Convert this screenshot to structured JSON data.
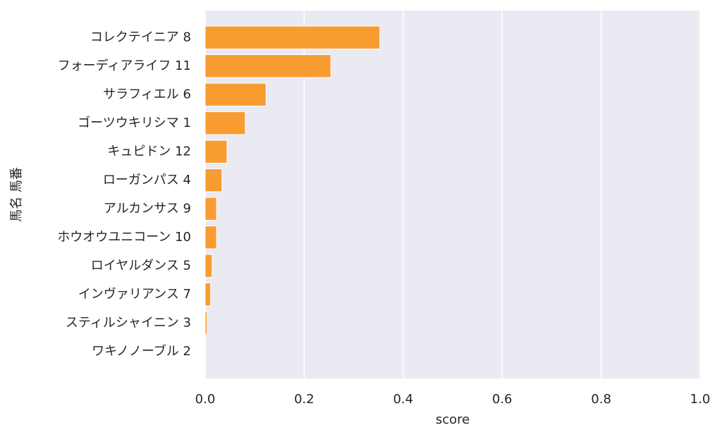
{
  "chart_data": {
    "type": "barh",
    "xlabel": "score",
    "ylabel": "馬名 馬番",
    "categories": [
      "コレクテイニア 8",
      "フォーディアライフ 11",
      "サラフィエル 6",
      "ゴーツウキリシマ 1",
      "キュピドン 12",
      "ローガンパス 4",
      "アルカンサス 9",
      "ホウオウユニコーン 10",
      "ロイヤルダンス 5",
      "インヴァリアンス 7",
      "スティルシャイニン 3",
      "ワキノノーブル 2"
    ],
    "values": [
      0.353,
      0.254,
      0.123,
      0.081,
      0.044,
      0.034,
      0.023,
      0.023,
      0.014,
      0.011,
      0.004,
      0.001
    ],
    "color": "#f89c32",
    "xlim": [
      0,
      1
    ],
    "xticks": [
      {
        "value": 0,
        "label": "0.0"
      },
      0.2,
      0.4,
      0.6,
      0.8,
      {
        "value": 1,
        "label": "1.0"
      }
    ],
    "grid": true
  }
}
